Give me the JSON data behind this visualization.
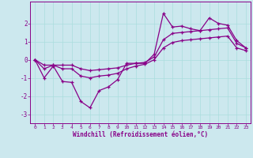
{
  "xlabel": "Windchill (Refroidissement éolien,°C)",
  "bg_color": "#cce8ee",
  "grid_color": "#b0d8e0",
  "line_color": "#880088",
  "xlim": [
    -0.5,
    23.5
  ],
  "ylim": [
    -3.5,
    3.2
  ],
  "yticks": [
    -3,
    -2,
    -1,
    0,
    1,
    2
  ],
  "xticks": [
    0,
    1,
    2,
    3,
    4,
    5,
    6,
    7,
    8,
    9,
    10,
    11,
    12,
    13,
    14,
    15,
    16,
    17,
    18,
    19,
    20,
    21,
    22,
    23
  ],
  "series1_x": [
    0,
    1,
    2,
    3,
    4,
    5,
    6,
    7,
    8,
    9,
    10,
    11,
    12,
    13,
    14,
    15,
    16,
    17,
    18,
    19,
    20,
    21,
    22,
    23
  ],
  "series1_y": [
    0.0,
    -1.0,
    -0.35,
    -1.2,
    -1.25,
    -2.3,
    -2.65,
    -1.7,
    -1.5,
    -1.1,
    -0.2,
    -0.2,
    -0.2,
    0.3,
    2.55,
    1.8,
    1.85,
    1.7,
    1.6,
    2.3,
    2.0,
    1.9,
    1.05,
    0.65
  ],
  "series2_x": [
    0,
    1,
    2,
    3,
    4,
    5,
    6,
    7,
    8,
    9,
    10,
    11,
    12,
    13,
    14,
    15,
    16,
    17,
    18,
    19,
    20,
    21,
    22,
    23
  ],
  "series2_y": [
    0.0,
    -0.3,
    -0.3,
    -0.3,
    -0.3,
    -0.5,
    -0.6,
    -0.55,
    -0.5,
    -0.45,
    -0.3,
    -0.2,
    -0.15,
    0.15,
    1.1,
    1.45,
    1.5,
    1.55,
    1.6,
    1.65,
    1.7,
    1.75,
    0.9,
    0.65
  ],
  "series3_x": [
    0,
    1,
    2,
    3,
    4,
    5,
    6,
    7,
    8,
    9,
    10,
    11,
    12,
    13,
    14,
    15,
    16,
    17,
    18,
    19,
    20,
    21,
    22,
    23
  ],
  "series3_y": [
    0.0,
    -0.5,
    -0.3,
    -0.5,
    -0.5,
    -0.9,
    -1.0,
    -0.9,
    -0.85,
    -0.75,
    -0.5,
    -0.35,
    -0.25,
    0.0,
    0.65,
    0.95,
    1.05,
    1.1,
    1.15,
    1.2,
    1.25,
    1.3,
    0.65,
    0.5
  ]
}
